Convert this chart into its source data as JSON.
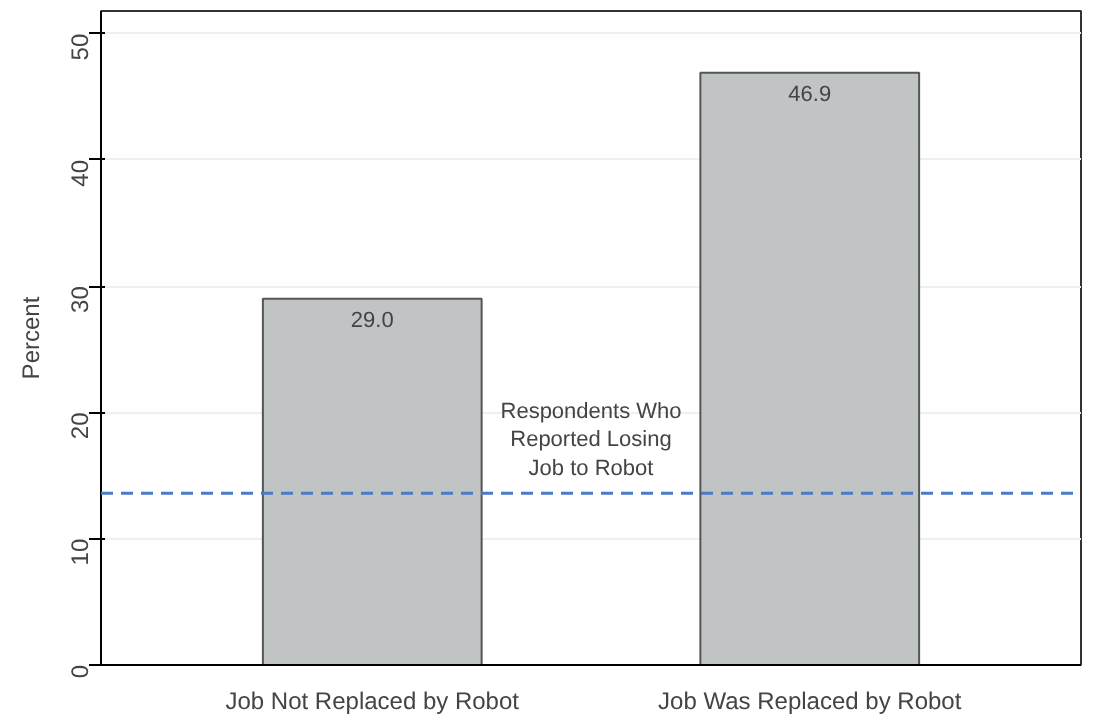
{
  "chart_data": {
    "type": "bar",
    "ylabel": "Percent",
    "categories": [
      "Job Not Replaced by Robot",
      "Job Was Replaced by Robot"
    ],
    "values": [
      29.0,
      46.9
    ],
    "color": "#c0c4c4",
    "value_labels": [
      "29.0",
      "46.9"
    ],
    "ylim": [
      0,
      51.8
    ],
    "yticks": [
      0,
      10,
      20,
      30,
      40,
      50
    ],
    "grid": "y",
    "ref_lines": [
      {
        "axis": "y",
        "value": 13.6,
        "label": "Respondents Who Reported Losing Job to Robot",
        "color": "#4a7ac8",
        "line_style": "dashed"
      }
    ]
  }
}
